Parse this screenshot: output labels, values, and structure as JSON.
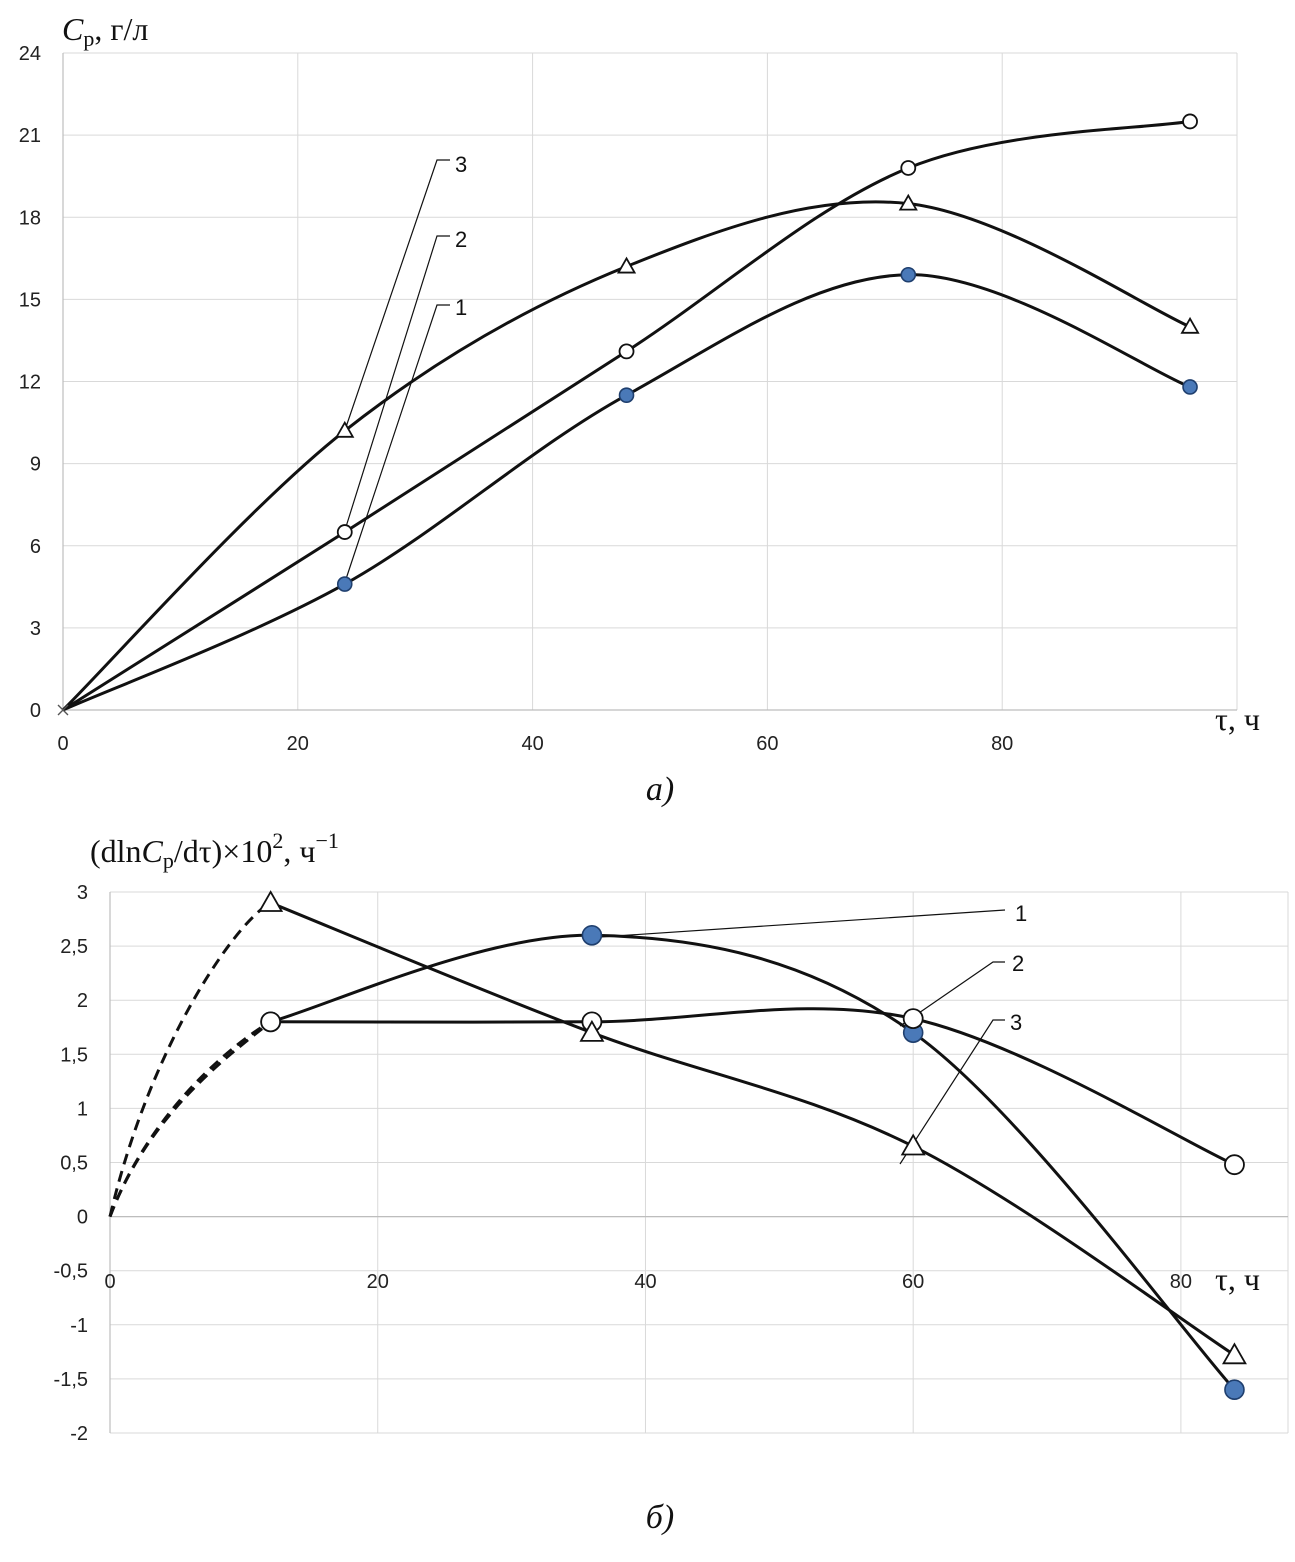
{
  "chart_data": [
    {
      "type": "line",
      "panel_label": "а)",
      "ylabel": {
        "symbol": "C",
        "sub": "р",
        "units": ", г/л"
      },
      "xlabel": "τ, ч",
      "xlim": [
        0,
        100
      ],
      "ylim": [
        0,
        24
      ],
      "xticks": [
        0,
        20,
        40,
        60,
        80
      ],
      "yticks": [
        0,
        3,
        6,
        9,
        12,
        15,
        18,
        21,
        24
      ],
      "grid": true,
      "series": [
        {
          "name": "1",
          "marker": "filled-circle",
          "x": [
            0,
            24,
            48,
            72,
            96
          ],
          "y": [
            0,
            4.6,
            11.5,
            15.9,
            11.8
          ]
        },
        {
          "name": "2",
          "marker": "open-circle",
          "x": [
            0,
            24,
            48,
            72,
            96
          ],
          "y": [
            0,
            6.5,
            13.1,
            19.8,
            21.5
          ]
        },
        {
          "name": "3",
          "marker": "open-triangle",
          "x": [
            0,
            24,
            48,
            72,
            96
          ],
          "y": [
            0,
            10.2,
            16.2,
            18.5,
            14.0
          ]
        }
      ],
      "annotations": [
        {
          "text": "3",
          "series": "3",
          "point_index": 1
        },
        {
          "text": "2",
          "series": "2",
          "point_index": 1
        },
        {
          "text": "1",
          "series": "1",
          "point_index": 1
        }
      ]
    },
    {
      "type": "line",
      "panel_label": "б)",
      "ylabel": {
        "prefix": "(d",
        "ln": "ln",
        "symbol": "C",
        "sub": "р",
        "mid": "/dτ)×10",
        "sup": "2",
        "units": ", ч",
        "unit_sup": "−1"
      },
      "xlabel": "τ, ч",
      "xlim": [
        0,
        88
      ],
      "ylim": [
        -2,
        3
      ],
      "xticks": [
        0,
        20,
        40,
        60,
        80
      ],
      "ytick_labels": [
        "3",
        "2,5",
        "2",
        "1,5",
        "1",
        "0,5",
        "0",
        "-0,5",
        "-1",
        "-1,5",
        "-2"
      ],
      "yticks": [
        3,
        2.5,
        2,
        1.5,
        1,
        0.5,
        0,
        -0.5,
        -1,
        -1.5,
        -2
      ],
      "grid": true,
      "series": [
        {
          "name": "1",
          "marker": "filled-circle",
          "x": [
            12,
            36,
            60,
            84
          ],
          "y": [
            1.8,
            2.6,
            1.7,
            -1.6
          ],
          "extrapolated_to_origin": true
        },
        {
          "name": "2",
          "marker": "open-circle",
          "x": [
            12,
            36,
            60,
            84
          ],
          "y": [
            1.8,
            1.8,
            1.83,
            0.48
          ],
          "extrapolated_to_origin": true
        },
        {
          "name": "3",
          "marker": "open-triangle",
          "x": [
            12,
            36,
            60,
            84
          ],
          "y": [
            2.9,
            1.7,
            0.65,
            -1.28
          ],
          "extrapolated_to_origin": true
        }
      ],
      "annotations": [
        {
          "text": "1",
          "series": "1",
          "point_index": 1
        },
        {
          "text": "2",
          "series": "2",
          "point_index": 2
        },
        {
          "text": "3",
          "series": "3",
          "point_index": 2
        }
      ]
    }
  ],
  "colors": {
    "curve": "#111111",
    "filled_marker": "#4a79b8",
    "marker_edge": "#1f3f6e",
    "grid": "#d9d9d9"
  }
}
